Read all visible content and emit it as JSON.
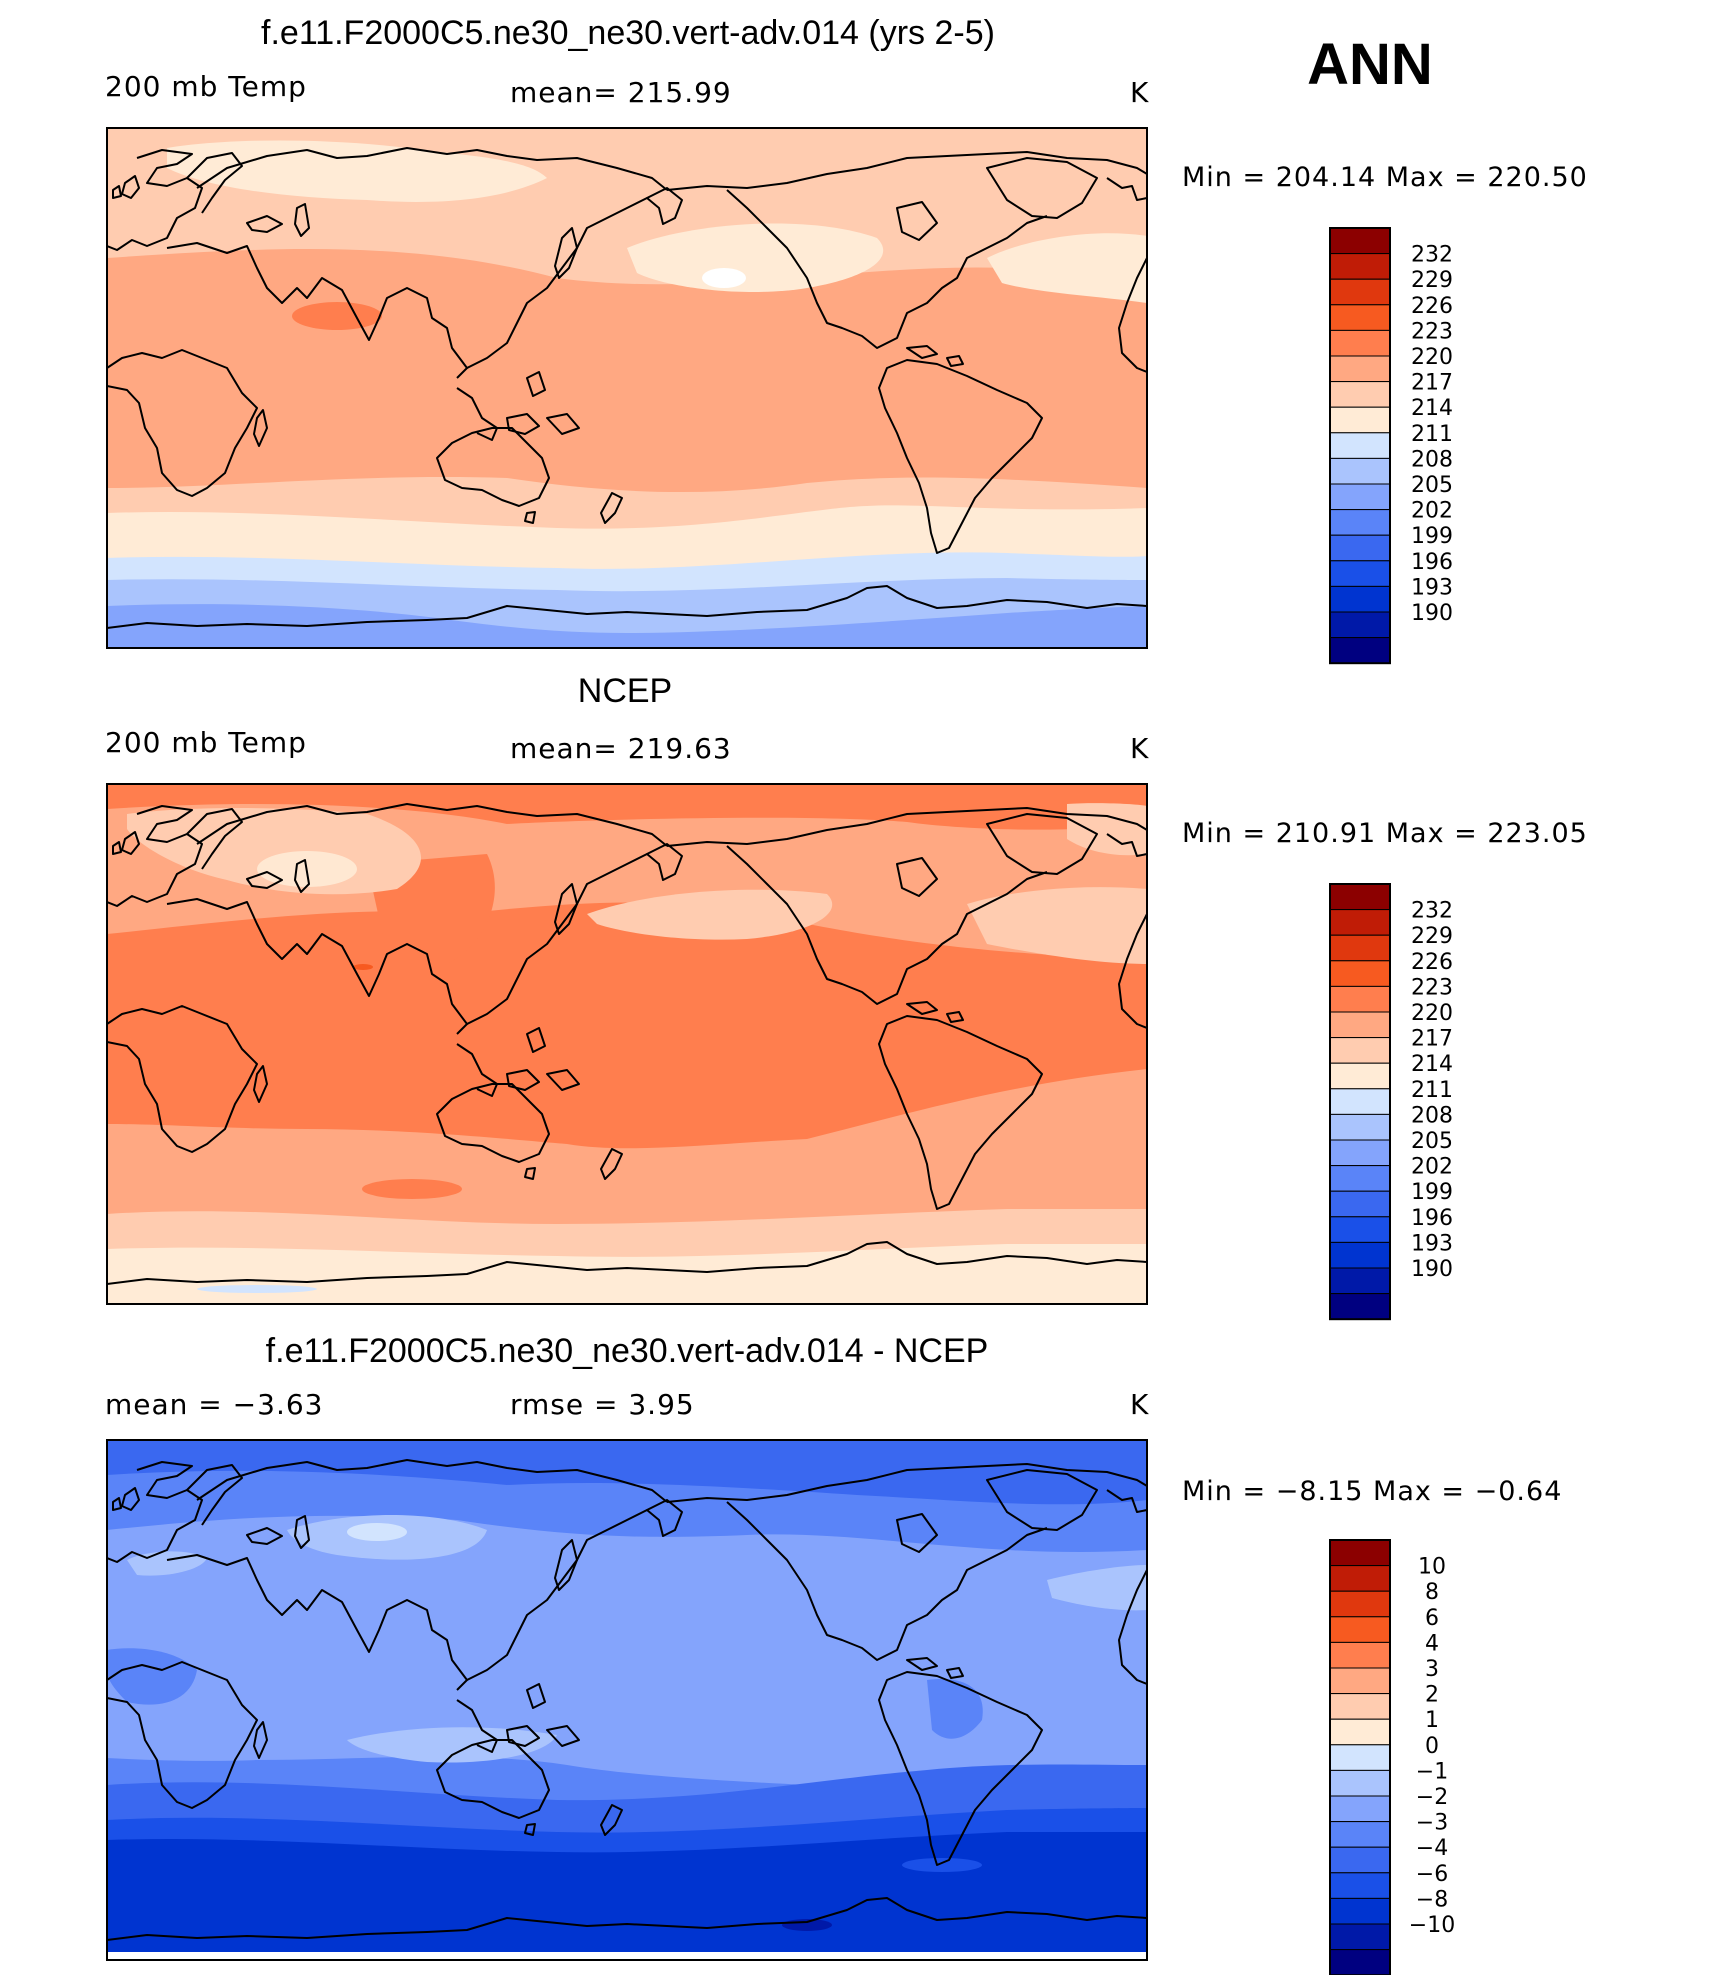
{
  "season_label": "ANN",
  "units": "K",
  "palette": {
    "temp": [
      "#000080",
      "#0019a8",
      "#0034d0",
      "#1a50e8",
      "#3a68f0",
      "#5a84f8",
      "#84a4fc",
      "#aac4fd",
      "#d2e4fe",
      "#ffebd6",
      "#ffccb0",
      "#ffa882",
      "#ff7e4e",
      "#f75a20",
      "#e0380e",
      "#c01c06",
      "#8c0000"
    ],
    "diff": [
      "#000080",
      "#0019a8",
      "#0034d0",
      "#1a50e8",
      "#3a68f0",
      "#5a84f8",
      "#84a4fc",
      "#aac4fd",
      "#d2e4fe",
      "#ffebd6",
      "#ffccb0",
      "#ffa882",
      "#ff7e4e",
      "#f75a20",
      "#e0380e",
      "#c01c06",
      "#8c0000"
    ]
  },
  "panels": [
    {
      "title": "f.e11.F2000C5.ne30_ne30.vert-adv.014 (yrs 2-5)",
      "left_label": "200 mb Temp",
      "center_label": "mean=  215.99",
      "right_label": "K",
      "minmax_label": "Min  =  204.14  Max  =  220.50"
    },
    {
      "title": "NCEP",
      "left_label": "200 mb Temp",
      "center_label": "mean=  219.63",
      "right_label": "K",
      "minmax_label": "Min  =  210.91  Max  =  223.05"
    },
    {
      "title": "f.e11.F2000C5.ne30_ne30.vert-adv.014 - NCEP",
      "left_label": "mean  =    −3.63",
      "center_label": "rmse  =     3.95",
      "right_label": "K",
      "minmax_label": "Min  =    −8.15  Max  =    −0.64"
    }
  ],
  "chart_data": [
    {
      "type": "heatmap",
      "title": "f.e11.F2000C5.ne30_ne30.vert-adv.014 (yrs 2-5)",
      "variable": "200 mb Temp",
      "units": "K",
      "mean": 215.99,
      "min": 204.14,
      "max": 220.5,
      "colorbar_levels": [
        "232",
        "229",
        "226",
        "223",
        "220",
        "217",
        "214",
        "211",
        "208",
        "205",
        "202",
        "199",
        "196",
        "193",
        "190"
      ]
    },
    {
      "type": "heatmap",
      "title": "NCEP",
      "variable": "200 mb Temp",
      "units": "K",
      "mean": 219.63,
      "min": 210.91,
      "max": 223.05,
      "colorbar_levels": [
        "232",
        "229",
        "226",
        "223",
        "220",
        "217",
        "214",
        "211",
        "208",
        "205",
        "202",
        "199",
        "196",
        "193",
        "190"
      ]
    },
    {
      "type": "heatmap",
      "title": "f.e11.F2000C5.ne30_ne30.vert-adv.014 - NCEP",
      "units": "K",
      "mean": -3.63,
      "rmse": 3.95,
      "min": -8.15,
      "max": -0.64,
      "colorbar_levels": [
        "10",
        "8",
        "6",
        "4",
        "3",
        "2",
        "1",
        "0",
        "−1",
        "−2",
        "−3",
        "−4",
        "−6",
        "−8",
        "−10"
      ]
    }
  ]
}
